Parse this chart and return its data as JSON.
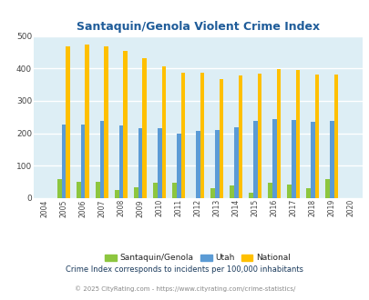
{
  "title": "Santaquin/Genola Violent Crime Index",
  "years": [
    2004,
    2005,
    2006,
    2007,
    2008,
    2009,
    2010,
    2011,
    2012,
    2013,
    2014,
    2015,
    2016,
    2017,
    2018,
    2019,
    2020
  ],
  "santaquin": [
    0,
    58,
    50,
    50,
    25,
    32,
    46,
    48,
    0,
    29,
    39,
    17,
    46,
    42,
    31,
    58,
    0
  ],
  "utah": [
    0,
    228,
    228,
    237,
    223,
    215,
    215,
    200,
    208,
    211,
    218,
    237,
    244,
    240,
    235,
    237,
    0
  ],
  "national": [
    0,
    469,
    473,
    467,
    455,
    432,
    405,
    387,
    387,
    367,
    377,
    383,
    398,
    394,
    381,
    380,
    0
  ],
  "color_santaquin": "#8dc63f",
  "color_utah": "#5b9bd5",
  "color_national": "#ffc000",
  "color_title": "#1f5c99",
  "color_bg_plot": "#ddeef5",
  "color_bg_fig": "#ffffff",
  "color_grid": "#ffffff",
  "ylim": [
    0,
    500
  ],
  "yticks": [
    0,
    100,
    200,
    300,
    400,
    500
  ],
  "footnote1": "Crime Index corresponds to incidents per 100,000 inhabitants",
  "footnote2": "© 2025 CityRating.com - https://www.cityrating.com/crime-statistics/",
  "legend_labels": [
    "Santaquin/Genola",
    "Utah",
    "National"
  ],
  "bar_width": 0.22
}
